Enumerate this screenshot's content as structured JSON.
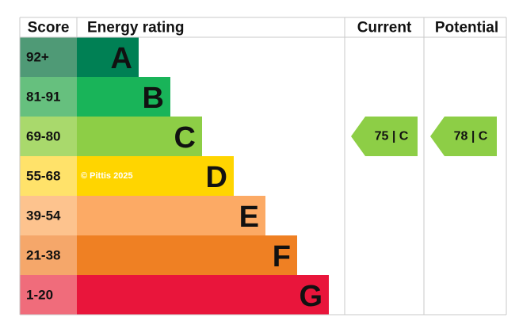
{
  "header": {
    "score": "Score",
    "energy_rating": "Energy rating",
    "current": "Current",
    "potential": "Potential"
  },
  "rows": [
    {
      "score": "92+",
      "letter": "A",
      "score_color": "#4f9a76",
      "bar_color": "#008054"
    },
    {
      "score": "81-91",
      "letter": "B",
      "score_color": "#66c07e",
      "bar_color": "#19b459"
    },
    {
      "score": "69-80",
      "letter": "C",
      "score_color": "#a9d96c",
      "bar_color": "#8dce46"
    },
    {
      "score": "55-68",
      "letter": "D",
      "score_color": "#ffe26a",
      "bar_color": "#ffd500"
    },
    {
      "score": "39-54",
      "letter": "E",
      "score_color": "#fdc38e",
      "bar_color": "#fcaa65"
    },
    {
      "score": "21-38",
      "letter": "F",
      "score_color": "#f5a76a",
      "bar_color": "#ef8023"
    },
    {
      "score": "1-20",
      "letter": "G",
      "score_color": "#f06c7b",
      "bar_color": "#e9153b"
    }
  ],
  "current": {
    "label": "75 | C",
    "color": "#8dce46"
  },
  "potential": {
    "label": "78 | C",
    "color": "#8dce46"
  },
  "watermark": "© Pittis 2025"
}
